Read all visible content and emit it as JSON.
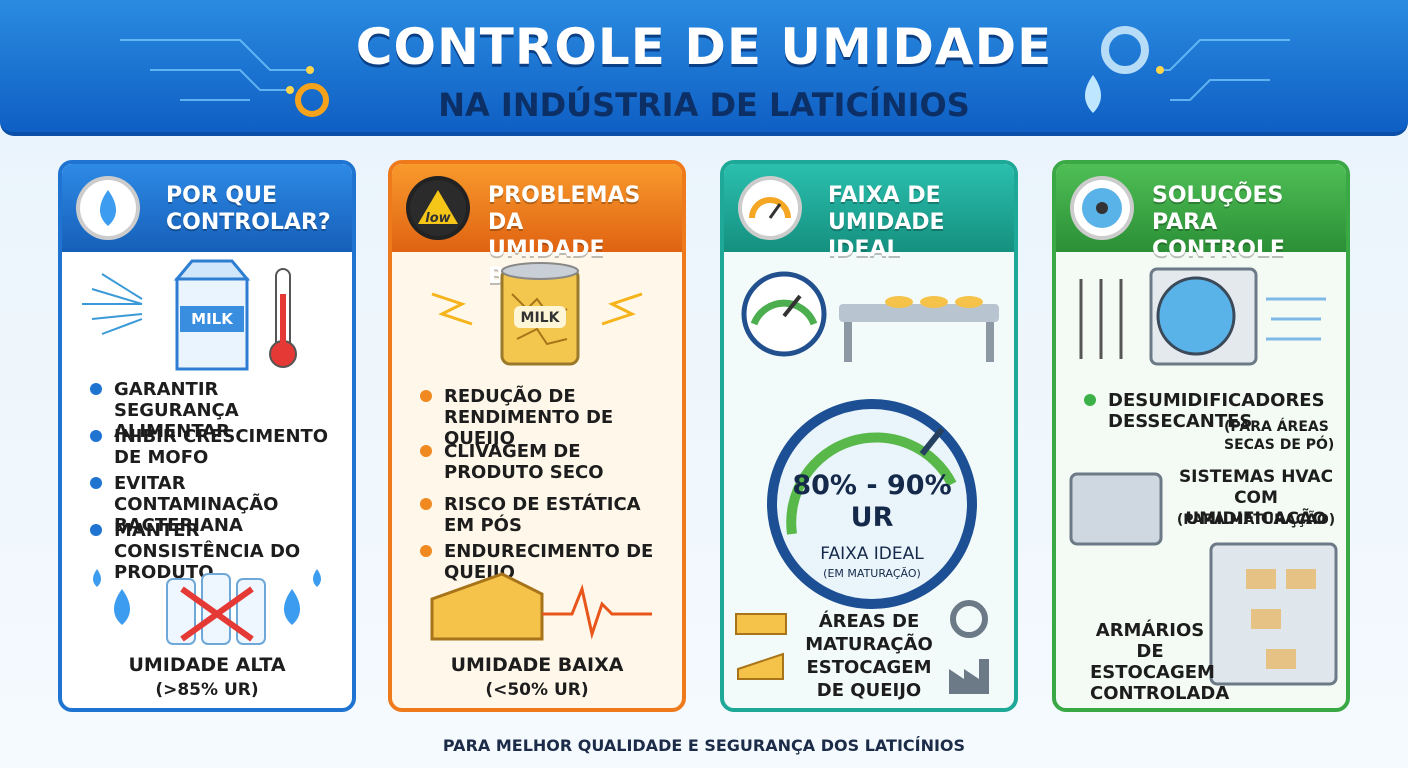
{
  "header": {
    "title": "CONTROLE DE UMIDADE",
    "subtitle": "NA INDÚSTRIA DE LATICÍNIOS"
  },
  "panels": [
    {
      "title": [
        "POR QUE",
        "CONTROLAR?"
      ],
      "image_label": "MILK",
      "items": [
        "GARANTIR SEGURANÇA ALIMENTAR",
        "INIBIR CRESCIMENTO DE MOFO",
        "EVITAR CONTAMINAÇÃO BACTERIANA",
        "MANTER CONSISTÊNCIA DO PRODUTO"
      ],
      "footer": [
        "UMIDADE ALTA",
        "(>85% UR)"
      ]
    },
    {
      "title": [
        "PROBLEMAS DA",
        "UMIDADE BAIXA"
      ],
      "icon_label": "low",
      "image_label": "MILK",
      "items": [
        "REDUÇÃO DE RENDIMENTO DE QUEIJO",
        "CLIVAGEM DE PRODUTO SECO",
        "RISCO DE ESTÁTICA EM PÓS",
        "ENDURECIMENTO DE QUEIJO"
      ],
      "footer": [
        "UMIDADE BAIXA",
        "(<50% UR)"
      ]
    },
    {
      "title": [
        "FAIXA DE",
        "UMIDADE IDEAL"
      ],
      "gauge": {
        "range": "80% - 90%",
        "unit": "UR",
        "label": "FAIXA IDEAL",
        "note": "(EM MATURAÇÃO)"
      },
      "caption": [
        "ÁREAS DE",
        "MATURAÇÃO",
        "ESTOCAGEM",
        "DE QUEIJO"
      ]
    },
    {
      "title": [
        "SOLUÇÕES",
        "PARA CONTROLE"
      ],
      "items": [
        {
          "text": "DESUMIDIFICADORES DESSECANTES",
          "note": "(PARA ÁREAS SECAS DE PÓ)"
        },
        {
          "text": "SISTEMAS HVAC COM UMIDIFICAÇÃO",
          "note": "(PARA MATURAÇÃO)"
        },
        {
          "text": "ARMÁRIOS DE ESTOCAGEM CONTROLADA"
        }
      ]
    }
  ],
  "footer": "PARA MELHOR QUALIDADE E SEGURANÇA DOS LATICÍNIOS"
}
